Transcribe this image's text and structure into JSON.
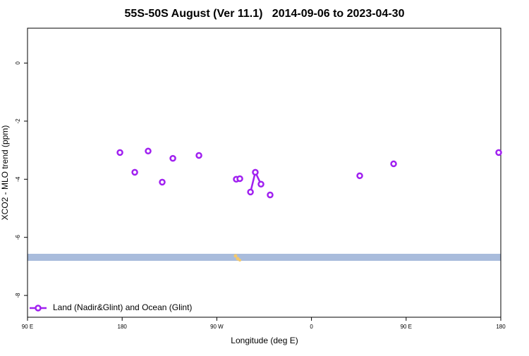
{
  "chart_data": {
    "type": "line",
    "title": "55S-50S August (Ver 11.1)   2014-09-06 to 2023-04-30",
    "xlabel": "Longitude (deg E)",
    "ylabel": "XCO2 - MLO trend (ppm)",
    "xlim": [
      90,
      540
    ],
    "xticks": [
      {
        "value": 90,
        "label": "90 E"
      },
      180,
      {
        "value": 270,
        "label": "90 W"
      },
      {
        "value": 360,
        "label": "0"
      },
      {
        "value": 450,
        "label": "90 E"
      },
      {
        "value": 540,
        "label": "180"
      }
    ],
    "ylim": [
      -8.75,
      1.2
    ],
    "yticks": [
      0,
      -2,
      -4,
      -6,
      -8
    ],
    "legend": "bottom-left",
    "series": [
      {
        "name": "Land (Nadir&Glint) and Ocean (Glint)",
        "color": "#a020f0",
        "x": [
          177.9,
          null,
          192,
          null,
          204.7,
          null,
          218.1,
          null,
          228.2,
          null,
          253,
          null,
          288.5,
          null,
          291.9,
          null,
          302,
          306.6,
          312,
          null,
          320.7,
          null,
          405.9,
          null,
          438.1,
          null,
          538
        ],
        "values": [
          -3.08,
          null,
          -3.76,
          null,
          -3.03,
          null,
          -4.1,
          null,
          -3.28,
          null,
          -3.18,
          null,
          -4.0,
          null,
          -3.98,
          null,
          -4.44,
          -3.76,
          -4.17,
          null,
          -4.54,
          null,
          -3.88,
          null,
          -3.47,
          null,
          -3.08
        ]
      }
    ]
  }
}
